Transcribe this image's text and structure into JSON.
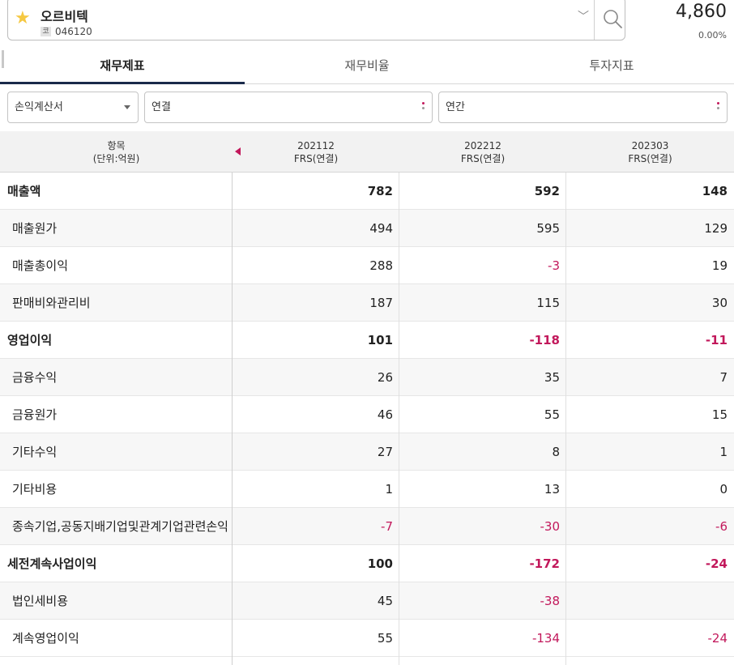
{
  "stock": {
    "name": "오르비텍",
    "code_badge": "코",
    "code": "046120",
    "price": "4,860",
    "change": "0.00%"
  },
  "tabs": [
    {
      "label": "재무제표",
      "active": true
    },
    {
      "label": "재무비율",
      "active": false
    },
    {
      "label": "투자지표",
      "active": false
    }
  ],
  "filters": {
    "statement": "손익계산서",
    "consolidation": "연결",
    "period": "연간"
  },
  "table": {
    "header_label_line1": "항목",
    "header_label_line2": "(단위:억원)",
    "columns": [
      {
        "period": "202112",
        "type": "FRS(연결)"
      },
      {
        "period": "202212",
        "type": "FRS(연결)"
      },
      {
        "period": "202303",
        "type": "FRS(연결)"
      }
    ],
    "rows": [
      {
        "label": "매출액",
        "bold": true,
        "values": [
          "782",
          "592",
          "148"
        ]
      },
      {
        "label": "매출원가",
        "bold": false,
        "values": [
          "494",
          "595",
          "129"
        ]
      },
      {
        "label": "매출총이익",
        "bold": false,
        "values": [
          "288",
          "-3",
          "19"
        ]
      },
      {
        "label": "판매비와관리비",
        "bold": false,
        "values": [
          "187",
          "115",
          "30"
        ]
      },
      {
        "label": "영업이익",
        "bold": true,
        "values": [
          "101",
          "-118",
          "-11"
        ]
      },
      {
        "label": "금융수익",
        "bold": false,
        "values": [
          "26",
          "35",
          "7"
        ]
      },
      {
        "label": "금융원가",
        "bold": false,
        "values": [
          "46",
          "55",
          "15"
        ]
      },
      {
        "label": "기타수익",
        "bold": false,
        "values": [
          "27",
          "8",
          "1"
        ]
      },
      {
        "label": "기타비용",
        "bold": false,
        "values": [
          "1",
          "13",
          "0"
        ]
      },
      {
        "label": "종속기업,공동지배기업및관계기업관련손익",
        "bold": false,
        "values": [
          "-7",
          "-30",
          "-6"
        ]
      },
      {
        "label": "세전계속사업이익",
        "bold": true,
        "values": [
          "100",
          "-172",
          "-24"
        ]
      },
      {
        "label": "법인세비용",
        "bold": false,
        "values": [
          "45",
          "-38",
          ""
        ]
      },
      {
        "label": "계속영업이익",
        "bold": false,
        "values": [
          "55",
          "-134",
          "-24"
        ]
      }
    ]
  },
  "colors": {
    "negative": "#c2185b",
    "star": "#f5c842",
    "tab_underline": "#1a2a4a"
  },
  "icons": {
    "star": "star-icon",
    "search": "search-icon",
    "chevron": "chevron-down-icon"
  }
}
